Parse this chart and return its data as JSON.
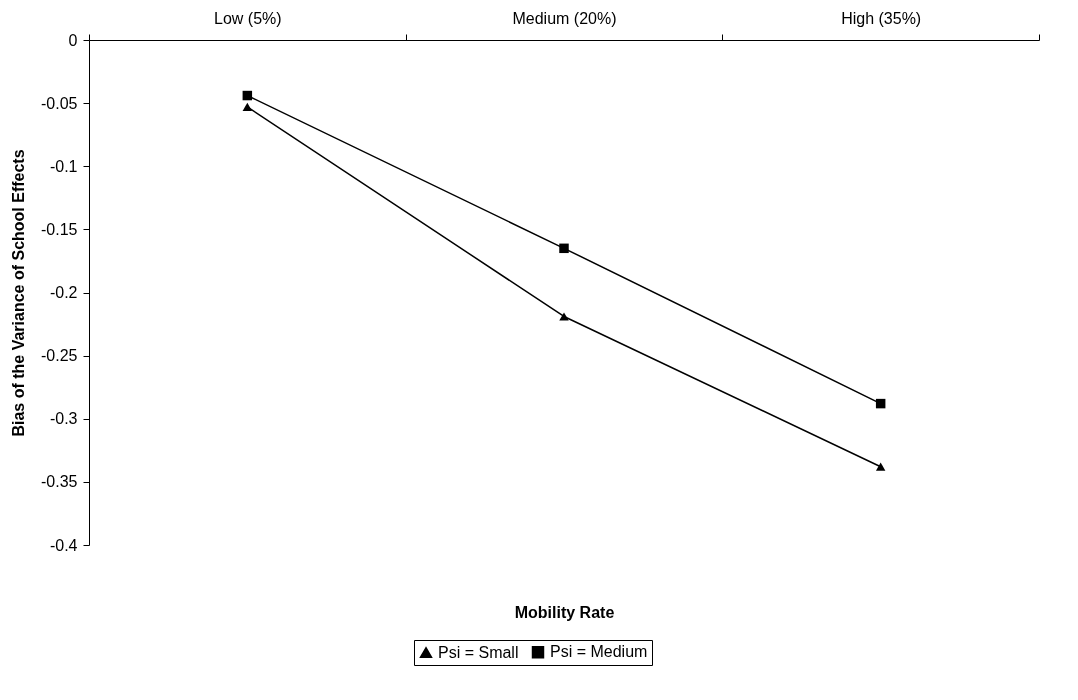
{
  "chart_data": {
    "type": "line",
    "xlabel": "Mobility Rate",
    "ylabel": "Bias of the Variance of School Effects",
    "categories": [
      "Low (5%)",
      "Medium (20%)",
      "High (35%)"
    ],
    "series": [
      {
        "name": "Psi = Small",
        "color": "#000000",
        "marker": "triangle",
        "values": [
          -0.053,
          -0.219,
          -0.338
        ]
      },
      {
        "name": "Psi = Medium",
        "color": "#000000",
        "marker": "square",
        "values": [
          -0.044,
          -0.165,
          -0.288
        ]
      }
    ],
    "ylim": [
      -0.4,
      0
    ],
    "yticks": [
      0,
      -0.05,
      -0.1,
      -0.15,
      -0.2,
      -0.25,
      -0.3,
      -0.35,
      -0.4
    ],
    "grid": false,
    "legend": "bottom",
    "line_style": "solid"
  }
}
